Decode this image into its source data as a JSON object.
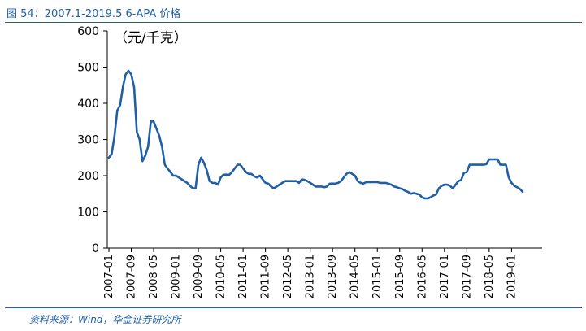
{
  "figure": {
    "title": "图 54：2007.1-2019.5 6-APA 价格",
    "source": "资料来源：Wind，华金证券研究所"
  },
  "chart_data": {
    "type": "line",
    "title": "",
    "unit_label": "（元/千克）",
    "xlabel": "",
    "ylabel": "",
    "ylim": [
      0,
      600
    ],
    "y_ticks": [
      "0",
      "100",
      "200",
      "300",
      "400",
      "500",
      "600"
    ],
    "x_ticks": [
      "2007-01",
      "2007-09",
      "2008-05",
      "2009-01",
      "2009-09",
      "2010-05",
      "2011-01",
      "2011-09",
      "2012-05",
      "2013-01",
      "2013-09",
      "2014-05",
      "2015-01",
      "2015-09",
      "2016-05",
      "2017-01",
      "2017-09",
      "2018-05",
      "2019-01"
    ],
    "grid": false,
    "legend": "none",
    "line_color": "#1f5fa8",
    "series": [
      {
        "x": [
          "2007-01",
          "2007-02",
          "2007-03",
          "2007-04",
          "2007-05",
          "2007-06",
          "2007-07",
          "2007-08",
          "2007-09",
          "2007-10",
          "2007-11",
          "2007-12",
          "2008-01",
          "2008-02",
          "2008-03",
          "2008-04",
          "2008-05",
          "2008-06",
          "2008-07",
          "2008-08",
          "2008-09",
          "2008-10",
          "2008-11",
          "2008-12",
          "2009-01",
          "2009-02",
          "2009-03",
          "2009-04",
          "2009-05",
          "2009-06",
          "2009-07",
          "2009-08",
          "2009-09",
          "2009-10",
          "2009-11",
          "2009-12",
          "2010-01",
          "2010-02",
          "2010-03",
          "2010-04",
          "2010-05",
          "2010-06",
          "2010-07",
          "2010-08",
          "2010-09",
          "2010-10",
          "2010-11",
          "2010-12",
          "2011-01",
          "2011-02",
          "2011-03",
          "2011-04",
          "2011-05",
          "2011-06",
          "2011-07",
          "2011-08",
          "2011-09",
          "2011-10",
          "2011-11",
          "2011-12",
          "2012-01",
          "2012-02",
          "2012-03",
          "2012-04",
          "2012-05",
          "2012-06",
          "2012-07",
          "2012-08",
          "2012-09",
          "2012-10",
          "2012-11",
          "2012-12",
          "2013-01",
          "2013-02",
          "2013-03",
          "2013-04",
          "2013-05",
          "2013-06",
          "2013-07",
          "2013-08",
          "2013-09",
          "2013-10",
          "2013-11",
          "2013-12",
          "2014-01",
          "2014-02",
          "2014-03",
          "2014-04",
          "2014-05",
          "2014-06",
          "2014-07",
          "2014-08",
          "2014-09",
          "2014-10",
          "2014-11",
          "2014-12",
          "2015-01",
          "2015-02",
          "2015-03",
          "2015-04",
          "2015-05",
          "2015-06",
          "2015-07",
          "2015-08",
          "2015-09",
          "2015-10",
          "2015-11",
          "2015-12",
          "2016-01",
          "2016-02",
          "2016-03",
          "2016-04",
          "2016-05",
          "2016-06",
          "2016-07",
          "2016-08",
          "2016-09",
          "2016-10",
          "2016-11",
          "2016-12",
          "2017-01",
          "2017-02",
          "2017-03",
          "2017-04",
          "2017-05",
          "2017-06",
          "2017-07",
          "2017-08",
          "2017-09",
          "2017-10",
          "2017-11",
          "2017-12",
          "2018-01",
          "2018-02",
          "2018-03",
          "2018-04",
          "2018-05",
          "2018-06",
          "2018-07",
          "2018-08",
          "2018-09",
          "2018-10",
          "2018-11",
          "2018-12",
          "2019-01",
          "2019-02",
          "2019-03",
          "2019-04",
          "2019-05"
        ],
        "values": [
          250,
          260,
          310,
          380,
          395,
          445,
          480,
          490,
          480,
          445,
          320,
          300,
          240,
          255,
          280,
          350,
          350,
          330,
          310,
          280,
          230,
          220,
          210,
          200,
          200,
          195,
          190,
          185,
          180,
          172,
          165,
          165,
          230,
          250,
          235,
          215,
          185,
          180,
          180,
          175,
          195,
          203,
          203,
          202,
          210,
          220,
          230,
          230,
          220,
          210,
          205,
          205,
          198,
          195,
          200,
          190,
          180,
          178,
          170,
          165,
          170,
          175,
          180,
          185,
          185,
          185,
          185,
          185,
          180,
          190,
          188,
          185,
          180,
          175,
          170,
          170,
          170,
          168,
          170,
          178,
          178,
          178,
          180,
          185,
          195,
          205,
          210,
          205,
          200,
          185,
          180,
          178,
          182,
          182,
          182,
          182,
          182,
          180,
          180,
          180,
          178,
          175,
          170,
          168,
          165,
          163,
          158,
          155,
          150,
          152,
          150,
          148,
          140,
          137,
          137,
          140,
          145,
          148,
          165,
          172,
          175,
          175,
          172,
          165,
          175,
          185,
          188,
          208,
          210,
          230,
          230,
          230,
          230,
          230,
          230,
          232,
          245,
          245,
          245,
          245,
          230,
          230,
          230,
          195,
          180,
          172,
          168,
          163,
          155
        ]
      }
    ]
  }
}
